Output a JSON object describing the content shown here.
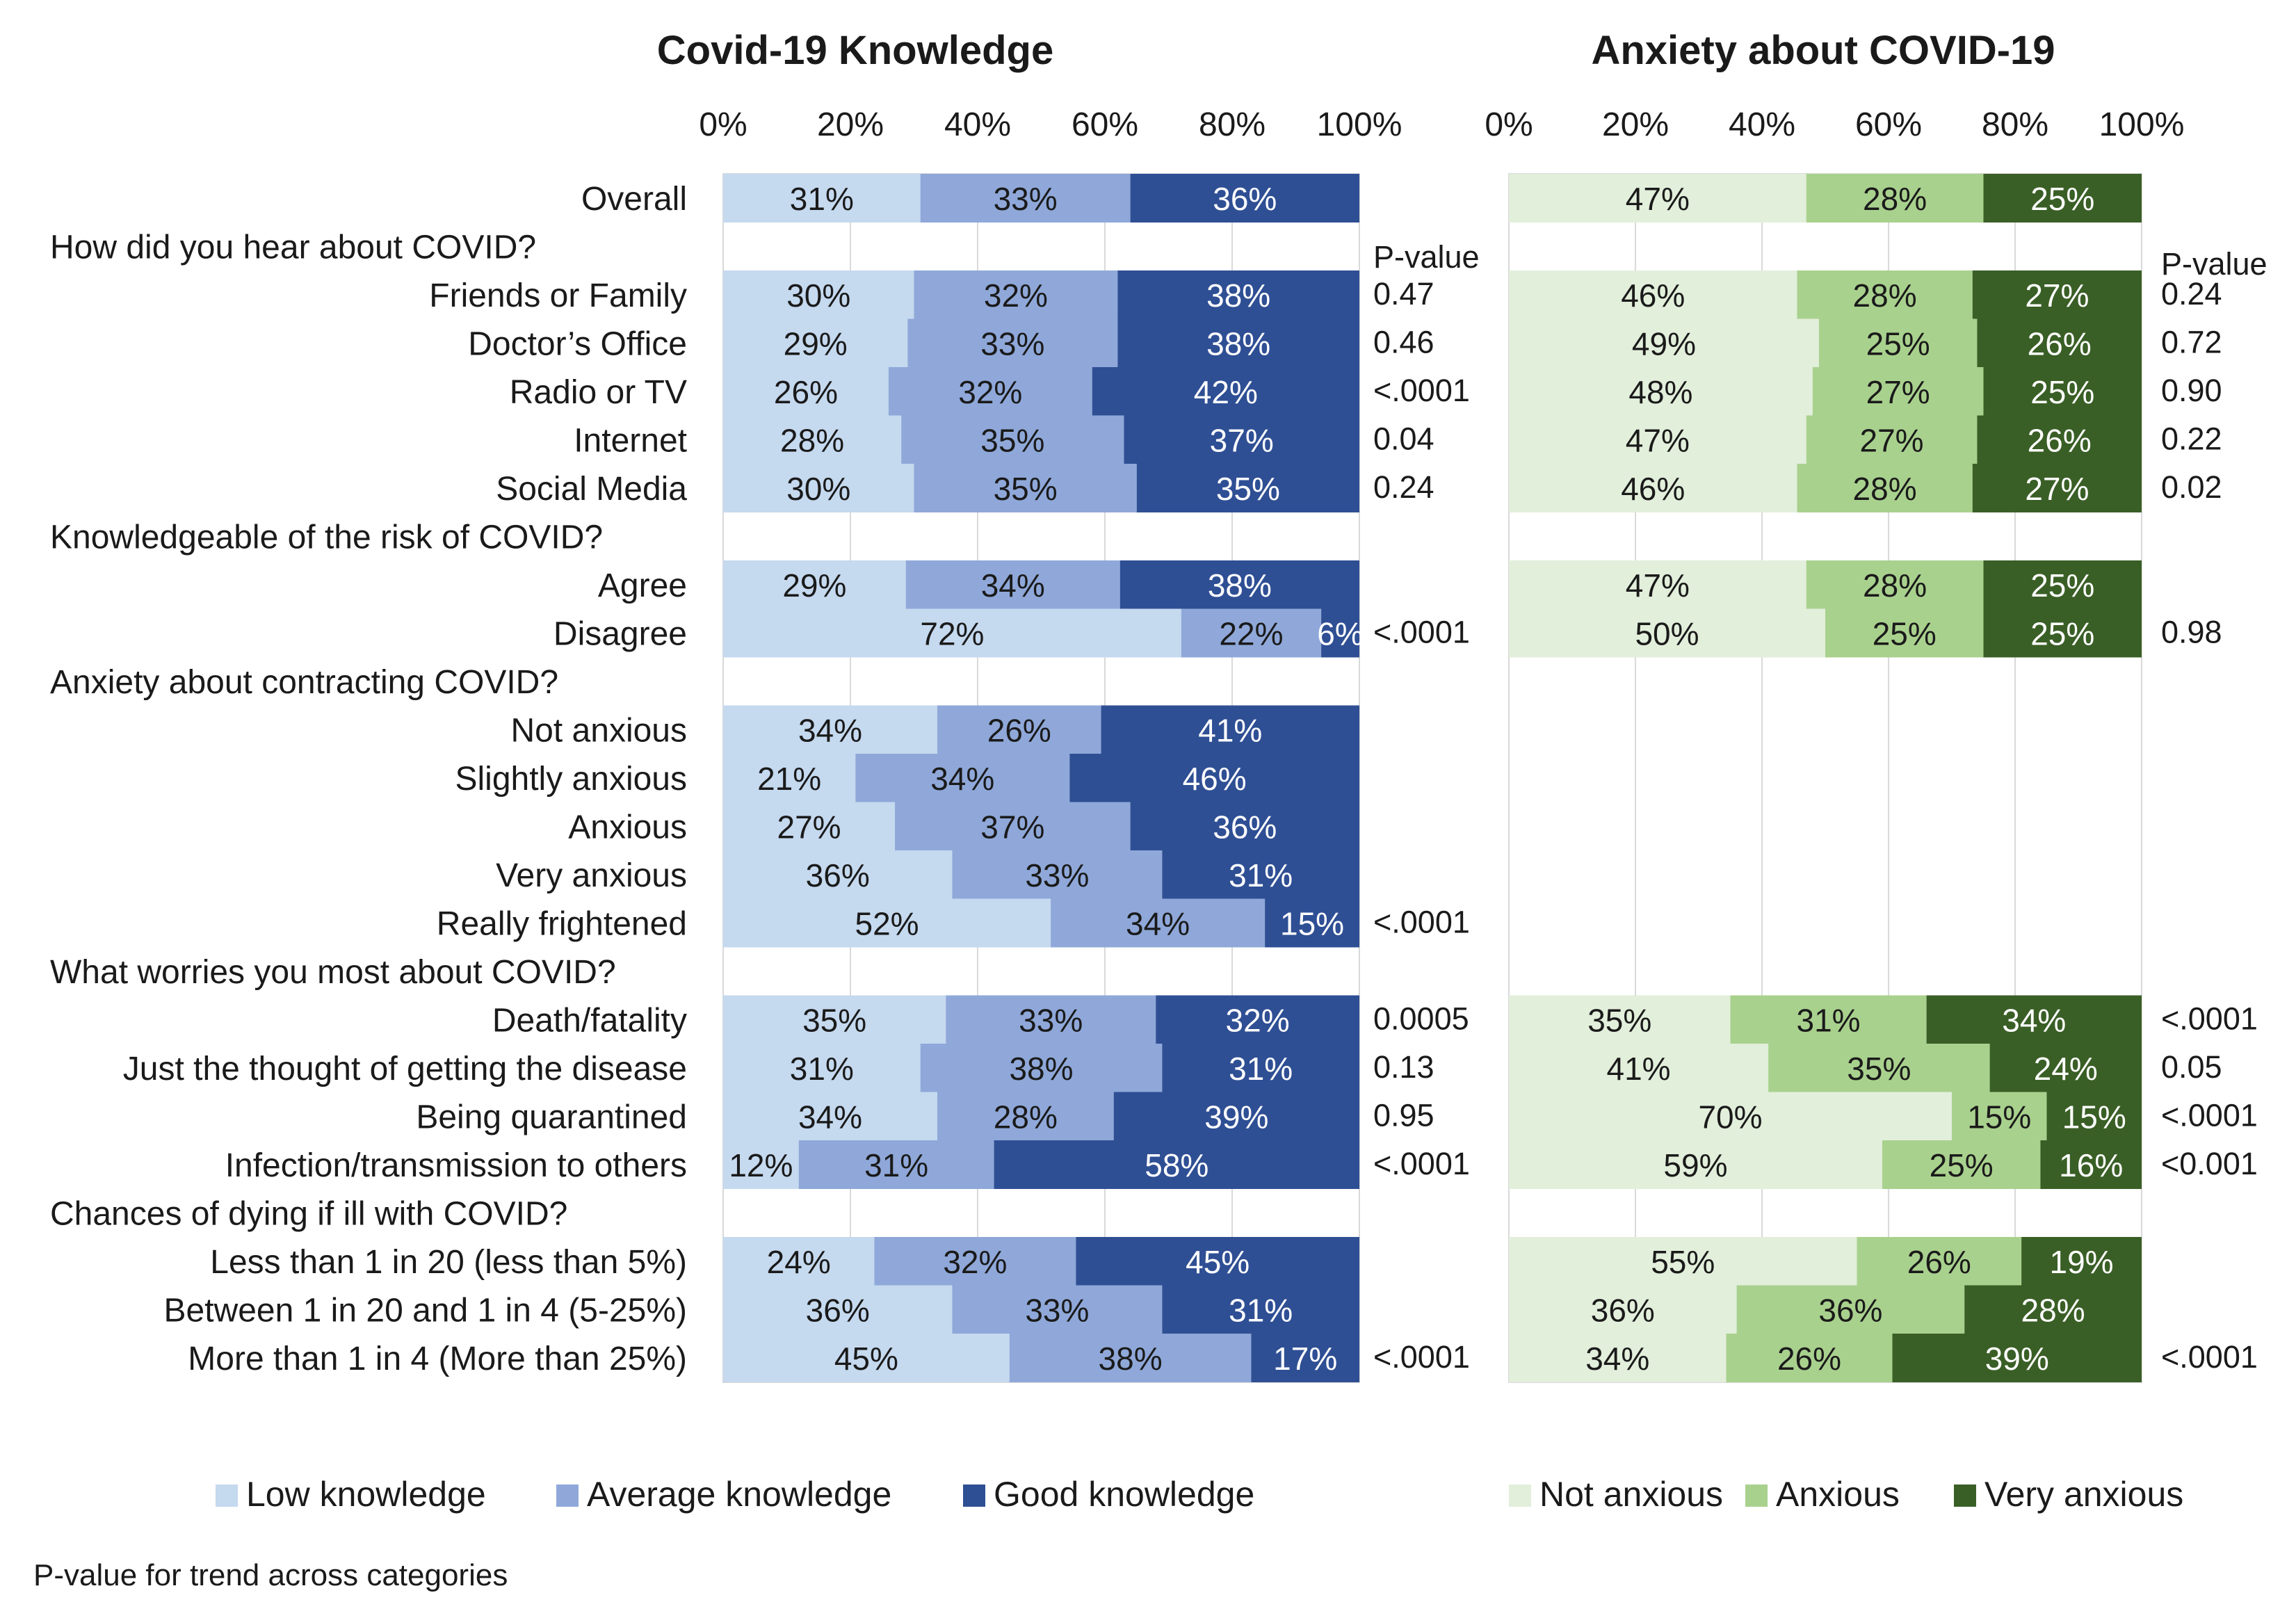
{
  "chart_data": {
    "type": "bar",
    "orientation": "horizontal",
    "stacked": "percent",
    "footnote": "P-value for trend across categories",
    "rows": [
      {
        "label": "Overall",
        "kind": "row"
      },
      {
        "label": "How did you hear about COVID?",
        "kind": "header"
      },
      {
        "label": "Friends or Family",
        "kind": "row"
      },
      {
        "label": "Doctor’s Office",
        "kind": "row"
      },
      {
        "label": "Radio or TV",
        "kind": "row"
      },
      {
        "label": "Internet",
        "kind": "row"
      },
      {
        "label": "Social Media",
        "kind": "row"
      },
      {
        "label": "Knowledgeable of the risk of COVID?",
        "kind": "header"
      },
      {
        "label": "Agree",
        "kind": "row"
      },
      {
        "label": "Disagree",
        "kind": "row"
      },
      {
        "label": "Anxiety about contracting COVID?",
        "kind": "header"
      },
      {
        "label": "Not anxious",
        "kind": "row"
      },
      {
        "label": "Slightly anxious",
        "kind": "row"
      },
      {
        "label": "Anxious",
        "kind": "row"
      },
      {
        "label": "Very anxious",
        "kind": "row"
      },
      {
        "label": "Really frightened",
        "kind": "row"
      },
      {
        "label": "What worries you most about COVID?",
        "kind": "header"
      },
      {
        "label": "Death/fatality",
        "kind": "row"
      },
      {
        "label": "Just the thought of getting the disease",
        "kind": "row"
      },
      {
        "label": "Being quarantined",
        "kind": "row"
      },
      {
        "label": "Infection/transmission to others",
        "kind": "row"
      },
      {
        "label": "Chances of dying if ill with COVID?",
        "kind": "header"
      },
      {
        "label": "Less than 1 in 20 (less than 5%)",
        "kind": "row"
      },
      {
        "label": "Between 1 in 20 and 1 in 4 (5-25%)",
        "kind": "row"
      },
      {
        "label": "More than 1 in 4 (More than 25%)",
        "kind": "row"
      }
    ],
    "panels": [
      {
        "title": "Covid-19 Knowledge",
        "xlim": [
          0,
          100
        ],
        "ticks": [
          "0%",
          "20%",
          "40%",
          "60%",
          "80%",
          "100%"
        ],
        "pvalue_header": "P-value",
        "series": [
          {
            "name": "Low knowledge",
            "color": "#c5d9ef"
          },
          {
            "name": "Average knowledge",
            "color": "#8fa8d9"
          },
          {
            "name": "Good knowledge",
            "color": "#2f4f94"
          }
        ],
        "values": [
          [
            31,
            33,
            36
          ],
          null,
          [
            30,
            32,
            38
          ],
          [
            29,
            33,
            38
          ],
          [
            26,
            32,
            42
          ],
          [
            28,
            35,
            37
          ],
          [
            30,
            35,
            35
          ],
          null,
          [
            29,
            34,
            38
          ],
          [
            72,
            22,
            6
          ],
          null,
          [
            34,
            26,
            41
          ],
          [
            21,
            34,
            46
          ],
          [
            27,
            37,
            36
          ],
          [
            36,
            33,
            31
          ],
          [
            52,
            34,
            15
          ],
          null,
          [
            35,
            33,
            32
          ],
          [
            31,
            38,
            31
          ],
          [
            34,
            28,
            39
          ],
          [
            12,
            31,
            58
          ],
          null,
          [
            24,
            32,
            45
          ],
          [
            36,
            33,
            31
          ],
          [
            45,
            38,
            17
          ]
        ],
        "labels": [
          [
            "31%",
            "33%",
            "36%"
          ],
          null,
          [
            "30%",
            "32%",
            "38%"
          ],
          [
            "29%",
            "33%",
            "38%"
          ],
          [
            "26%",
            "32%",
            "42%"
          ],
          [
            "28%",
            "35%",
            "37%"
          ],
          [
            "30%",
            "35%",
            "35%"
          ],
          null,
          [
            "29%",
            "34%",
            "38%"
          ],
          [
            "72%",
            "22%",
            "6%"
          ],
          null,
          [
            "34%",
            "26%",
            "41%"
          ],
          [
            "21%",
            "34%",
            "46%"
          ],
          [
            "27%",
            "37%",
            "36%"
          ],
          [
            "36%",
            "33%",
            "31%"
          ],
          [
            "52%",
            "34%",
            "15%"
          ],
          null,
          [
            "35%",
            "33%",
            "32%"
          ],
          [
            "31%",
            "38%",
            "31%"
          ],
          [
            "34%",
            "28%",
            "39%"
          ],
          [
            "12%",
            "31%",
            "58%"
          ],
          null,
          [
            "24%",
            "32%",
            "45%"
          ],
          [
            "36%",
            "33%",
            "31%"
          ],
          [
            "45%",
            "38%",
            "17%"
          ]
        ],
        "pvalues": [
          "",
          "",
          "0.47",
          "0.46",
          "<.0001",
          "0.04",
          "0.24",
          "",
          "",
          "<.0001",
          "",
          "",
          "",
          "",
          "",
          "<.0001",
          "",
          "0.0005",
          "0.13",
          "0.95",
          "<.0001",
          "",
          "",
          "",
          "<.0001"
        ]
      },
      {
        "title": "Anxiety about COVID-19",
        "xlim": [
          0,
          100
        ],
        "ticks": [
          "0%",
          "20%",
          "40%",
          "60%",
          "80%",
          "100%"
        ],
        "pvalue_header": "P-value",
        "series": [
          {
            "name": "Not anxious",
            "color": "#e2efdb"
          },
          {
            "name": "Anxious",
            "color": "#a9d18e"
          },
          {
            "name": "Very anxious",
            "color": "#3a5f26"
          }
        ],
        "values": [
          [
            47,
            28,
            25
          ],
          null,
          [
            46,
            28,
            27
          ],
          [
            49,
            25,
            26
          ],
          [
            48,
            27,
            25
          ],
          [
            47,
            27,
            26
          ],
          [
            46,
            28,
            27
          ],
          null,
          [
            47,
            28,
            25
          ],
          [
            50,
            25,
            25
          ],
          null,
          null,
          null,
          null,
          null,
          null,
          null,
          [
            35,
            31,
            34
          ],
          [
            41,
            35,
            24
          ],
          [
            70,
            15,
            15
          ],
          [
            59,
            25,
            16
          ],
          null,
          [
            55,
            26,
            19
          ],
          [
            36,
            36,
            28
          ],
          [
            34,
            26,
            39
          ]
        ],
        "labels": [
          [
            "47%",
            "28%",
            "25%"
          ],
          null,
          [
            "46%",
            "28%",
            "27%"
          ],
          [
            "49%",
            "25%",
            "26%"
          ],
          [
            "48%",
            "27%",
            "25%"
          ],
          [
            "47%",
            "27%",
            "26%"
          ],
          [
            "46%",
            "28%",
            "27%"
          ],
          null,
          [
            "47%",
            "28%",
            "25%"
          ],
          [
            "50%",
            "25%",
            "25%"
          ],
          null,
          null,
          null,
          null,
          null,
          null,
          null,
          [
            "35%",
            "31%",
            "34%"
          ],
          [
            "41%",
            "35%",
            "24%"
          ],
          [
            "70%",
            "15%",
            "15%"
          ],
          [
            "59%",
            "25%",
            "16%"
          ],
          null,
          [
            "55%",
            "26%",
            "19%"
          ],
          [
            "36%",
            "36%",
            "28%"
          ],
          [
            "34%",
            "26%",
            "39%"
          ]
        ],
        "pvalues": [
          "",
          "",
          "0.24",
          "0.72",
          "0.90",
          "0.22",
          "0.02",
          "",
          "",
          "0.98",
          "",
          "",
          "",
          "",
          "",
          "",
          "",
          "<.0001",
          "0.05",
          "<.0001",
          "<0.001",
          "",
          "",
          "",
          "<.0001"
        ]
      }
    ]
  }
}
